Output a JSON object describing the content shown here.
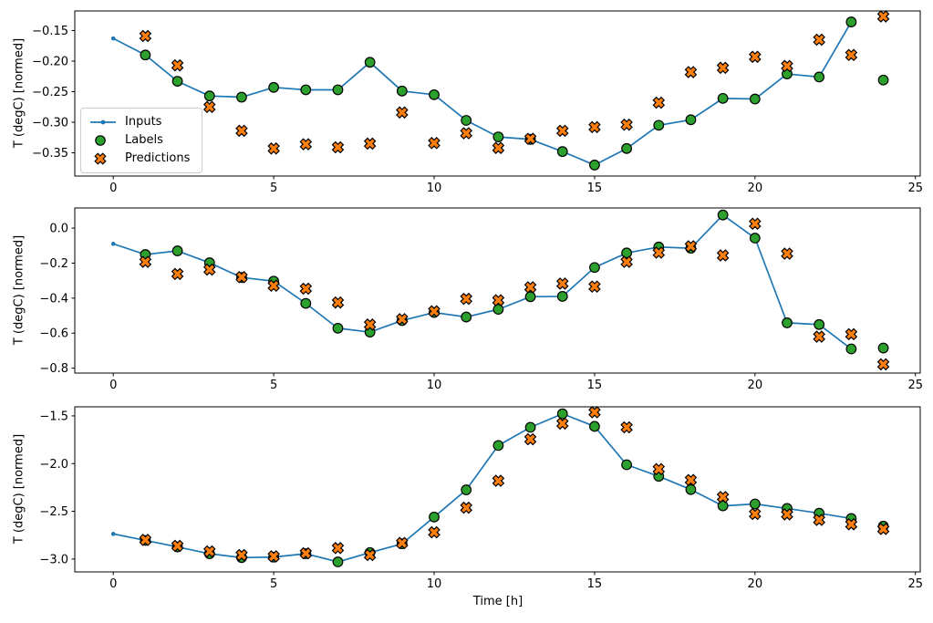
{
  "figure": {
    "xlabel": "Time [h]",
    "ylabel": "T (degC) [normed]",
    "background": "#ffffff",
    "colors": {
      "inputs": "#1f77b4",
      "labels": "#2ca02c",
      "predictions": "#ff7f0e",
      "marker_edge": "#000000",
      "spine": "#000000",
      "tick_text": "#000000",
      "legend_border": "#cccccc"
    },
    "legend": {
      "entries": [
        {
          "label": "Inputs",
          "marker": "line-dot-icon"
        },
        {
          "label": "Labels",
          "marker": "circle-marker-icon"
        },
        {
          "label": "Predictions",
          "marker": "x-marker-icon"
        }
      ]
    }
  },
  "chart_data": [
    {
      "type": "line",
      "subplot": 1,
      "title": "",
      "xlabel": "",
      "ylabel": "T (degC) [normed]",
      "xlim": [
        -1.2,
        25.15
      ],
      "ylim": [
        -0.388,
        -0.118
      ],
      "xticks": [
        0,
        5,
        10,
        15,
        20,
        25
      ],
      "xtick_labels": [
        "0",
        "5",
        "10",
        "15",
        "20",
        "25"
      ],
      "yticks": [
        -0.15,
        -0.2,
        -0.25,
        -0.3,
        -0.35
      ],
      "ytick_labels": [
        "−0.15",
        "−0.20",
        "−0.25",
        "−0.30",
        "−0.35"
      ],
      "grid": false,
      "legend_position": "center-left",
      "series": [
        {
          "name": "Inputs",
          "kind": "line-dot",
          "color": "#1f77b4",
          "x": [
            0,
            1,
            2,
            3,
            4,
            5,
            6,
            7,
            8,
            9,
            10,
            11,
            12,
            13,
            14,
            15,
            16,
            17,
            18,
            19,
            20,
            21,
            22,
            23
          ],
          "y": [
            -0.163,
            -0.19,
            -0.233,
            -0.257,
            -0.259,
            -0.243,
            -0.247,
            -0.247,
            -0.202,
            -0.249,
            -0.255,
            -0.297,
            -0.324,
            -0.328,
            -0.348,
            -0.37,
            -0.343,
            -0.305,
            -0.296,
            -0.261,
            -0.262,
            -0.221,
            -0.226,
            -0.136
          ]
        },
        {
          "name": "Labels",
          "kind": "scatter-circle",
          "color": "#2ca02c",
          "edge": "#000000",
          "x": [
            1,
            2,
            3,
            4,
            5,
            6,
            7,
            8,
            9,
            10,
            11,
            12,
            13,
            14,
            15,
            16,
            17,
            18,
            19,
            20,
            21,
            22,
            23,
            24
          ],
          "y": [
            -0.19,
            -0.233,
            -0.257,
            -0.259,
            -0.243,
            -0.247,
            -0.247,
            -0.202,
            -0.249,
            -0.255,
            -0.297,
            -0.324,
            -0.328,
            -0.348,
            -0.37,
            -0.343,
            -0.305,
            -0.296,
            -0.261,
            -0.262,
            -0.221,
            -0.226,
            -0.136,
            -0.231
          ]
        },
        {
          "name": "Predictions",
          "kind": "scatter-x",
          "color": "#ff7f0e",
          "edge": "#000000",
          "x": [
            1,
            2,
            3,
            4,
            5,
            6,
            7,
            8,
            9,
            10,
            11,
            12,
            13,
            14,
            15,
            16,
            17,
            18,
            19,
            20,
            21,
            22,
            23,
            24
          ],
          "y": [
            -0.159,
            -0.207,
            -0.275,
            -0.314,
            -0.343,
            -0.336,
            -0.341,
            -0.335,
            -0.284,
            -0.334,
            -0.318,
            -0.342,
            -0.327,
            -0.314,
            -0.308,
            -0.304,
            -0.268,
            -0.218,
            -0.211,
            -0.193,
            -0.208,
            -0.165,
            -0.19,
            -0.127
          ]
        }
      ]
    },
    {
      "type": "line",
      "subplot": 2,
      "title": "",
      "xlabel": "",
      "ylabel": "T (degC) [normed]",
      "xlim": [
        -1.2,
        25.15
      ],
      "ylim": [
        -0.828,
        0.115
      ],
      "xticks": [
        0,
        5,
        10,
        15,
        20,
        25
      ],
      "xtick_labels": [
        "0",
        "5",
        "10",
        "15",
        "20",
        "25"
      ],
      "yticks": [
        0.0,
        -0.2,
        -0.4,
        -0.6,
        -0.8
      ],
      "ytick_labels": [
        "0.0",
        "−0.2",
        "−0.4",
        "−0.6",
        "−0.8"
      ],
      "grid": false,
      "legend_position": "none",
      "series": [
        {
          "name": "Inputs",
          "kind": "line-dot",
          "color": "#1f77b4",
          "x": [
            0,
            1,
            2,
            3,
            4,
            5,
            6,
            7,
            8,
            9,
            10,
            11,
            12,
            13,
            14,
            15,
            16,
            17,
            18,
            19,
            20,
            21,
            22,
            23
          ],
          "y": [
            -0.09,
            -0.151,
            -0.13,
            -0.198,
            -0.282,
            -0.303,
            -0.43,
            -0.572,
            -0.594,
            -0.528,
            -0.482,
            -0.508,
            -0.464,
            -0.392,
            -0.39,
            -0.225,
            -0.142,
            -0.108,
            -0.115,
            0.075,
            -0.057,
            -0.541,
            -0.551,
            -0.69
          ]
        },
        {
          "name": "Labels",
          "kind": "scatter-circle",
          "color": "#2ca02c",
          "edge": "#000000",
          "x": [
            1,
            2,
            3,
            4,
            5,
            6,
            7,
            8,
            9,
            10,
            11,
            12,
            13,
            14,
            15,
            16,
            17,
            18,
            19,
            20,
            21,
            22,
            23,
            24
          ],
          "y": [
            -0.151,
            -0.13,
            -0.198,
            -0.282,
            -0.303,
            -0.43,
            -0.572,
            -0.594,
            -0.528,
            -0.482,
            -0.508,
            -0.464,
            -0.392,
            -0.39,
            -0.225,
            -0.142,
            -0.108,
            -0.115,
            0.075,
            -0.057,
            -0.541,
            -0.551,
            -0.69,
            -0.685
          ]
        },
        {
          "name": "Predictions",
          "kind": "scatter-x",
          "color": "#ff7f0e",
          "edge": "#000000",
          "x": [
            1,
            2,
            3,
            4,
            5,
            6,
            7,
            8,
            9,
            10,
            11,
            12,
            13,
            14,
            15,
            16,
            17,
            18,
            19,
            20,
            21,
            22,
            23,
            24
          ],
          "y": [
            -0.193,
            -0.262,
            -0.237,
            -0.28,
            -0.329,
            -0.346,
            -0.425,
            -0.551,
            -0.52,
            -0.475,
            -0.404,
            -0.412,
            -0.338,
            -0.317,
            -0.334,
            -0.193,
            -0.14,
            -0.104,
            -0.156,
            0.025,
            -0.146,
            -0.62,
            -0.606,
            -0.778
          ]
        }
      ]
    },
    {
      "type": "line",
      "subplot": 3,
      "title": "",
      "xlabel": "Time [h]",
      "ylabel": "T (degC) [normed]",
      "xlim": [
        -1.2,
        25.15
      ],
      "ylim": [
        -3.135,
        -1.405
      ],
      "xticks": [
        0,
        5,
        10,
        15,
        20,
        25
      ],
      "xtick_labels": [
        "0",
        "5",
        "10",
        "15",
        "20",
        "25"
      ],
      "yticks": [
        -1.5,
        -2.0,
        -2.5,
        -3.0
      ],
      "ytick_labels": [
        "−1.5",
        "−2.0",
        "−2.5",
        "−3.0"
      ],
      "grid": false,
      "legend_position": "none",
      "series": [
        {
          "name": "Inputs",
          "kind": "line-dot",
          "color": "#1f77b4",
          "x": [
            0,
            1,
            2,
            3,
            4,
            5,
            6,
            7,
            8,
            9,
            10,
            11,
            12,
            13,
            14,
            15,
            16,
            17,
            18,
            19,
            20,
            21,
            22,
            23
          ],
          "y": [
            -2.737,
            -2.805,
            -2.873,
            -2.944,
            -2.985,
            -2.98,
            -2.944,
            -3.03,
            -2.932,
            -2.84,
            -2.56,
            -2.275,
            -1.81,
            -1.62,
            -1.478,
            -1.61,
            -2.012,
            -2.133,
            -2.272,
            -2.443,
            -2.423,
            -2.47,
            -2.52,
            -2.575
          ]
        },
        {
          "name": "Labels",
          "kind": "scatter-circle",
          "color": "#2ca02c",
          "edge": "#000000",
          "x": [
            1,
            2,
            3,
            4,
            5,
            6,
            7,
            8,
            9,
            10,
            11,
            12,
            13,
            14,
            15,
            16,
            17,
            18,
            19,
            20,
            21,
            22,
            23,
            24
          ],
          "y": [
            -2.805,
            -2.873,
            -2.944,
            -2.985,
            -2.98,
            -2.944,
            -3.03,
            -2.932,
            -2.84,
            -2.56,
            -2.275,
            -1.81,
            -1.62,
            -1.478,
            -1.61,
            -2.012,
            -2.133,
            -2.272,
            -2.443,
            -2.423,
            -2.47,
            -2.52,
            -2.575,
            -2.655
          ]
        },
        {
          "name": "Predictions",
          "kind": "scatter-x",
          "color": "#ff7f0e",
          "edge": "#000000",
          "x": [
            1,
            2,
            3,
            4,
            5,
            6,
            7,
            8,
            9,
            10,
            11,
            12,
            13,
            14,
            15,
            16,
            17,
            18,
            19,
            20,
            21,
            22,
            23,
            24
          ],
          "y": [
            -2.8,
            -2.862,
            -2.92,
            -2.958,
            -2.972,
            -2.94,
            -2.885,
            -2.958,
            -2.832,
            -2.72,
            -2.462,
            -2.18,
            -1.745,
            -1.58,
            -1.462,
            -1.62,
            -2.058,
            -2.172,
            -2.35,
            -2.528,
            -2.532,
            -2.59,
            -2.636,
            -2.685
          ]
        }
      ]
    }
  ]
}
